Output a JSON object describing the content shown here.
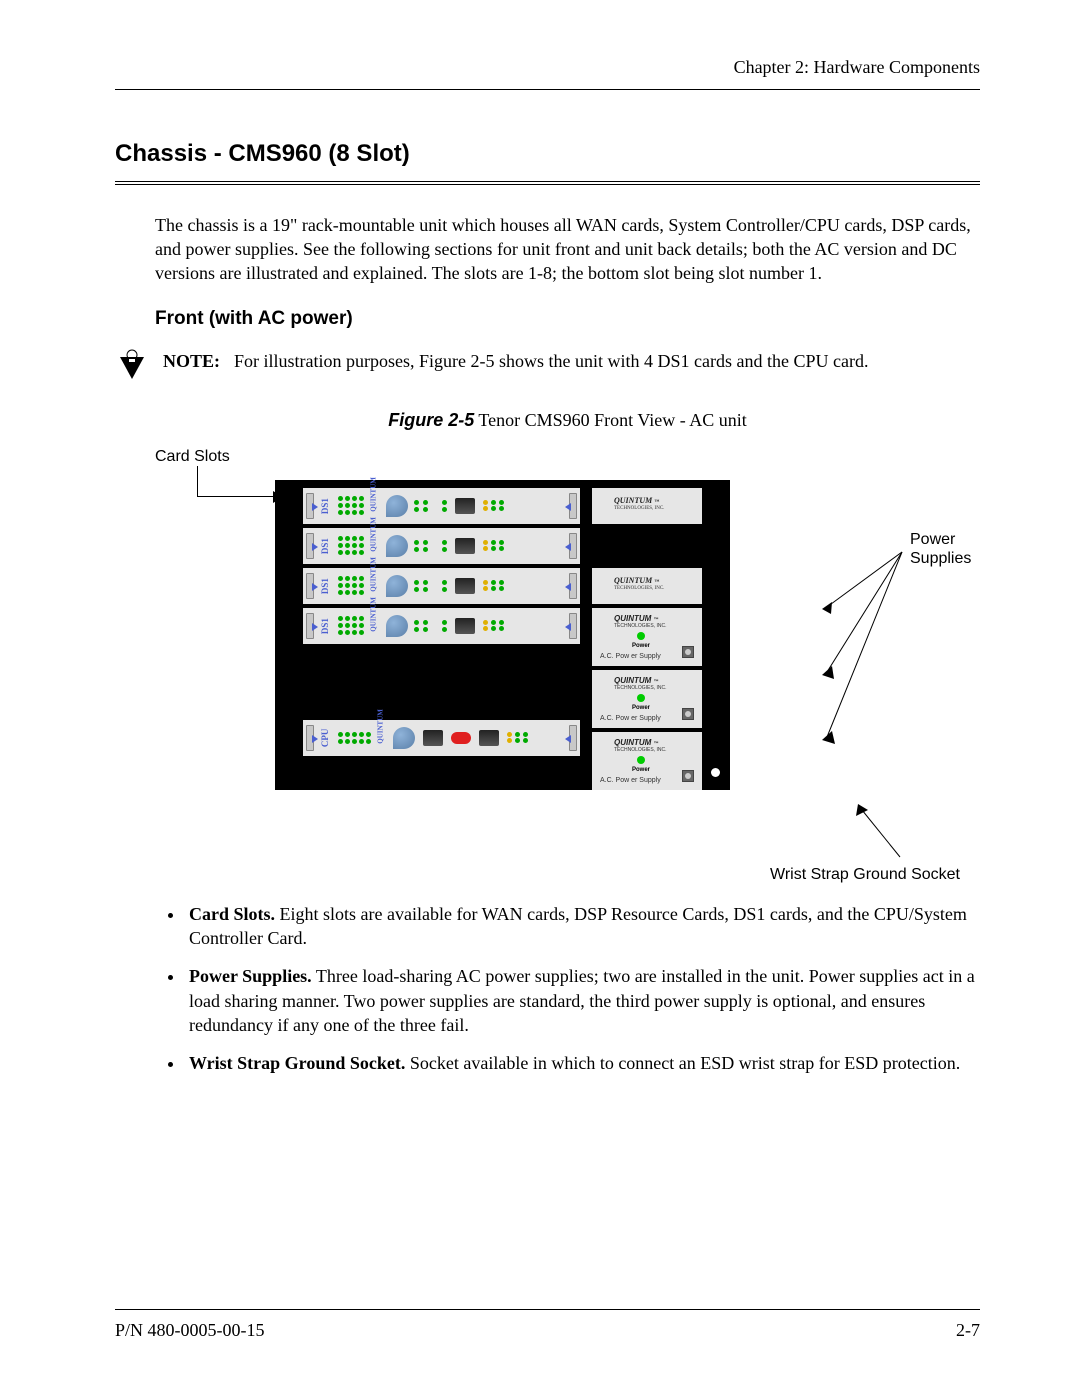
{
  "header": {
    "chapter": "Chapter 2: Hardware Components"
  },
  "title": "Chassis - CMS960 (8 Slot)",
  "intro": "The chassis is a 19\" rack-mountable unit which houses all WAN cards, System Controller/CPU cards, DSP cards, and power supplies. See the following sections for unit front and unit back details; both the AC version and DC versions are illustrated and explained. The slots are 1-8; the bottom slot being slot number 1.",
  "subhead": "Front (with AC power)",
  "note": {
    "label": "NOTE:",
    "text": "For illustration purposes, Figure 2-5 shows the unit with 4 DS1 cards and the CPU card."
  },
  "figure": {
    "caption_label": "Figure 2-5",
    "caption_text": " Tenor CMS960 Front View - AC unit",
    "callouts": {
      "card_slots": "Card Slots",
      "power_supplies": "Power Supplies",
      "wrist_strap": "Wrist Strap Ground Socket"
    },
    "chassis": {
      "background_color": "#000000",
      "panel_color": "#e6e6e6",
      "text_color": "#4a5fd0",
      "led_span_color": "#00aa00",
      "led_amber_color": "#e0b000",
      "reset_color": "#e02020",
      "cards": [
        {
          "type": "DS1",
          "span_leds": [
            4,
            4,
            4
          ],
          "brand": "QUINTUM",
          "has_data_port": false
        },
        {
          "type": "DS1",
          "span_leds": [
            4,
            4,
            4
          ],
          "brand": "QUINTUM",
          "has_data_port": false
        },
        {
          "type": "DS1",
          "span_leds": [
            4,
            4,
            4
          ],
          "brand": "QUINTUM",
          "has_data_port": false
        },
        {
          "type": "DS1",
          "span_leds": [
            4,
            4,
            4
          ],
          "brand": "QUINTUM",
          "has_data_port": false
        },
        {
          "type": "CPU",
          "brand": "QUINTUM",
          "has_reset": true
        }
      ],
      "power_supplies": [
        {
          "brand": "QUINTUM",
          "sub": "TECHNOLOGIES, INC.",
          "led_color": "#00cc00",
          "power_text": "Power",
          "label": "A.C. Pow er Supply"
        },
        {
          "brand": "QUINTUM",
          "sub": "TECHNOLOGIES, INC.",
          "led_color": "#00cc00",
          "power_text": "Power",
          "label": "A.C. Pow er Supply"
        },
        {
          "brand": "QUINTUM",
          "sub": "TECHNOLOGIES, INC.",
          "led_color": "#00cc00",
          "power_text": "Power",
          "label": "A.C. Pow er Supply"
        }
      ]
    }
  },
  "bullets": [
    {
      "lead": "Card Slots.",
      "text": " Eight slots are available for WAN cards, DSP Resource Cards, DS1 cards, and the CPU/System Controller Card."
    },
    {
      "lead": "Power Supplies.",
      "text": " Three load-sharing AC power supplies; two are installed in the unit. Power supplies act in a load sharing manner. Two power supplies are standard, the third power supply is optional, and ensures redundancy if any one of the three fail."
    },
    {
      "lead": "Wrist Strap Ground Socket.",
      "text": " Socket available in which to connect an ESD wrist strap for ESD protection."
    }
  ],
  "footer": {
    "left": "P/N 480-0005-00-15",
    "right": "2-7"
  }
}
